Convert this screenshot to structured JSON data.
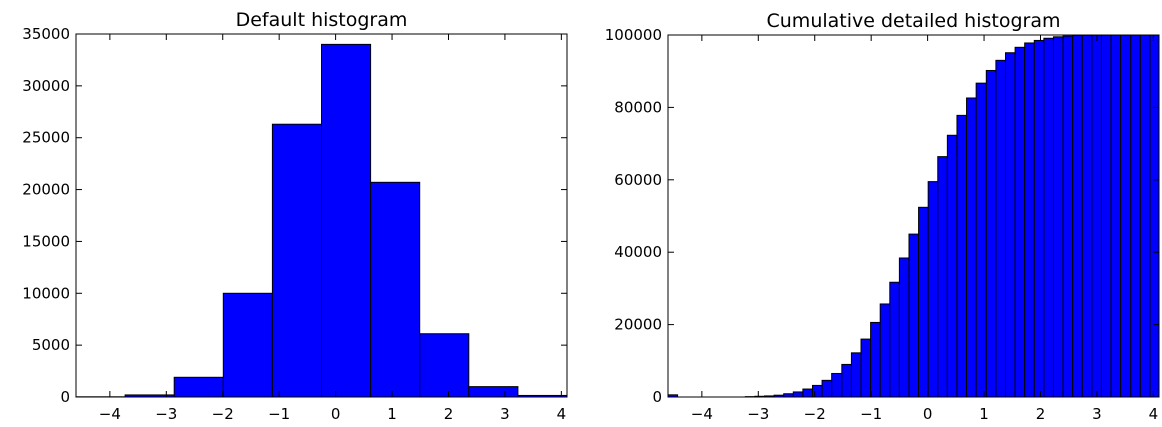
{
  "chart_data": [
    {
      "type": "bar",
      "title": "Default histogram",
      "xlabel": "",
      "ylabel": "",
      "xlim": [
        -4.6,
        4.1
      ],
      "ylim": [
        0,
        35000
      ],
      "xticks": [
        "−4",
        "−3",
        "−2",
        "−1",
        "0",
        "1",
        "2",
        "3",
        "4"
      ],
      "yticks": [
        "0",
        "5000",
        "10000",
        "15000",
        "20000",
        "25000",
        "30000",
        "35000"
      ],
      "bin_edges": [
        -4.6,
        -3.73,
        -2.86,
        -1.99,
        -1.12,
        -0.25,
        0.62,
        1.49,
        2.36,
        3.23,
        4.1
      ],
      "values": [
        20,
        200,
        1900,
        10000,
        26300,
        34000,
        20700,
        6100,
        1000,
        150
      ],
      "grid": false,
      "bar_color": "#0000ff"
    },
    {
      "type": "bar",
      "title": "Cumulative detailed histogram",
      "xlabel": "",
      "ylabel": "",
      "cumulative": true,
      "xlim": [
        -4.6,
        4.1
      ],
      "ylim": [
        0,
        100000
      ],
      "xticks": [
        "−4",
        "−3",
        "−2",
        "−1",
        "0",
        "1",
        "2",
        "3",
        "4"
      ],
      "yticks": [
        "0",
        "20000",
        "40000",
        "60000",
        "80000",
        "100000"
      ],
      "bin_edges": [
        -4.6,
        -4.43,
        -4.26,
        -4.08,
        -3.91,
        -3.74,
        -3.57,
        -3.4,
        -3.23,
        -3.06,
        -2.89,
        -2.72,
        -2.55,
        -2.38,
        -2.21,
        -2.04,
        -1.87,
        -1.7,
        -1.52,
        -1.35,
        -1.18,
        -1.01,
        -0.84,
        -0.67,
        -0.5,
        -0.33,
        -0.16,
        0.01,
        0.18,
        0.35,
        0.52,
        0.69,
        0.86,
        1.04,
        1.21,
        1.38,
        1.55,
        1.72,
        1.89,
        2.06,
        2.23,
        2.4,
        2.57,
        2.74,
        2.91,
        3.08,
        3.25,
        3.42,
        3.6,
        3.77,
        3.94,
        4.1
      ],
      "values": [
        600,
        0,
        0,
        0,
        0,
        0,
        0,
        0,
        100,
        200,
        300,
        500,
        900,
        1400,
        2200,
        3200,
        4600,
        6500,
        9000,
        12200,
        16000,
        20600,
        25700,
        31700,
        38400,
        45000,
        52400,
        59500,
        66400,
        72300,
        77800,
        82600,
        86700,
        90200,
        93000,
        95100,
        96600,
        97800,
        98500,
        99100,
        99500,
        99700,
        99850,
        99920,
        99960,
        99980,
        99990,
        99995,
        100000,
        100000,
        100000
      ],
      "grid": false,
      "bar_color": "#0000ff"
    }
  ]
}
